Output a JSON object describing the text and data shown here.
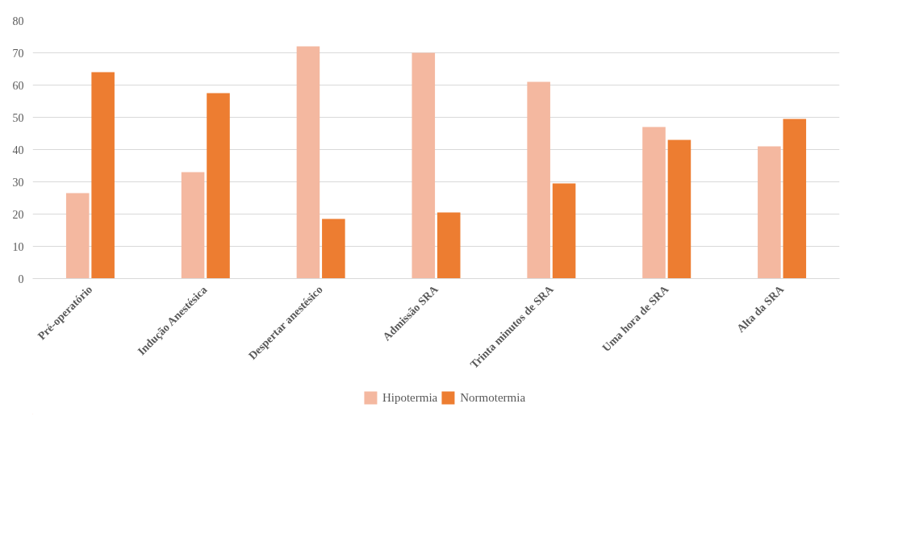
{
  "chart_data": {
    "type": "bar",
    "categories": [
      "Pré-operatório",
      "Indução Anestésica",
      "Despertar anestésico",
      "Admissão SRA",
      "Trinta minutos de SRA",
      "Uma hora de SRA",
      "Alta da SRA"
    ],
    "series": [
      {
        "name": "Hipotermia",
        "color": "#f4b8a0",
        "values": [
          26.5,
          33,
          72,
          70,
          61,
          47,
          41
        ]
      },
      {
        "name": "Normotermia",
        "color": "#ed7d31",
        "values": [
          64,
          57.5,
          18.5,
          20.5,
          29.5,
          43,
          49.5
        ]
      }
    ],
    "ylim": [
      0,
      80
    ],
    "yticks": [
      0,
      10,
      20,
      30,
      40,
      50,
      60,
      70,
      80
    ],
    "grid": "y",
    "legend": "bottom"
  }
}
